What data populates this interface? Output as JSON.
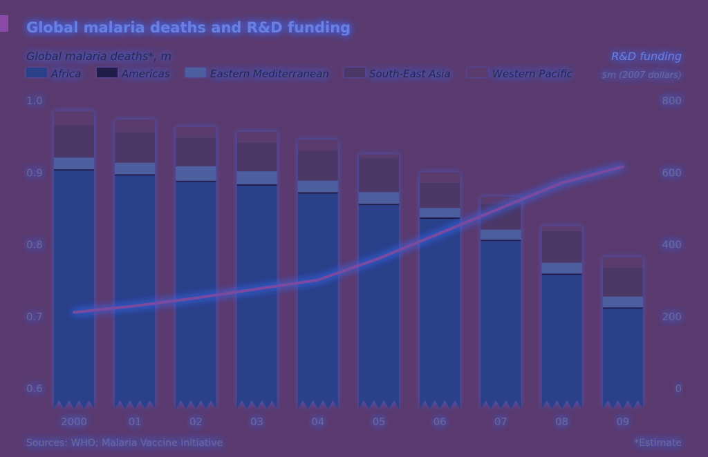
{
  "chart_data": {
    "type": "bar",
    "title": "Global malaria deaths and R&D funding",
    "left_axis_title": "Global malaria deaths*, m",
    "right_axis_title_line1": "R&D funding",
    "right_axis_title_line2": "$m (2007 dollars)",
    "source": "Sources: WHO; Malaria Vaccine Initiative",
    "footnote": "*Estimate",
    "categories": [
      "2000",
      "01",
      "02",
      "03",
      "04",
      "05",
      "06",
      "07",
      "08",
      "09"
    ],
    "ylim": [
      0.6,
      1.0
    ],
    "yticks": [
      "0.6",
      "0.7",
      "0.8",
      "0.9",
      "1.0"
    ],
    "y2lim": [
      0,
      800
    ],
    "y2ticks": [
      "0",
      "200",
      "400",
      "600",
      "800"
    ],
    "legend_placement": "top",
    "stacked": true,
    "series": [
      {
        "name": "Africa",
        "color": "#2c3f88",
        "values": [
          0.902,
          0.895,
          0.886,
          0.881,
          0.87,
          0.854,
          0.835,
          0.804,
          0.757,
          0.71
        ]
      },
      {
        "name": "Americas",
        "color": "#241c48",
        "values": [
          0.002,
          0.002,
          0.002,
          0.002,
          0.002,
          0.002,
          0.002,
          0.002,
          0.002,
          0.002
        ]
      },
      {
        "name": "Eastern Mediterranean",
        "color": "#4e5e9e",
        "values": [
          0.016,
          0.016,
          0.02,
          0.018,
          0.016,
          0.016,
          0.013,
          0.014,
          0.015,
          0.015
        ]
      },
      {
        "name": "South-East Asia",
        "color": "#4b3766",
        "values": [
          0.045,
          0.042,
          0.04,
          0.04,
          0.042,
          0.048,
          0.035,
          0.036,
          0.044,
          0.04
        ]
      },
      {
        "name": "Western Pacific",
        "color": "#5a3a6e",
        "values": [
          0.02,
          0.018,
          0.015,
          0.015,
          0.015,
          0.005,
          0.015,
          0.01,
          0.007,
          0.015
        ]
      }
    ],
    "line_series": {
      "name": "R&D funding",
      "color": "#7a4aa0",
      "values": [
        210,
        228,
        250,
        275,
        300,
        360,
        430,
        500,
        570,
        615
      ]
    },
    "grid": false
  }
}
